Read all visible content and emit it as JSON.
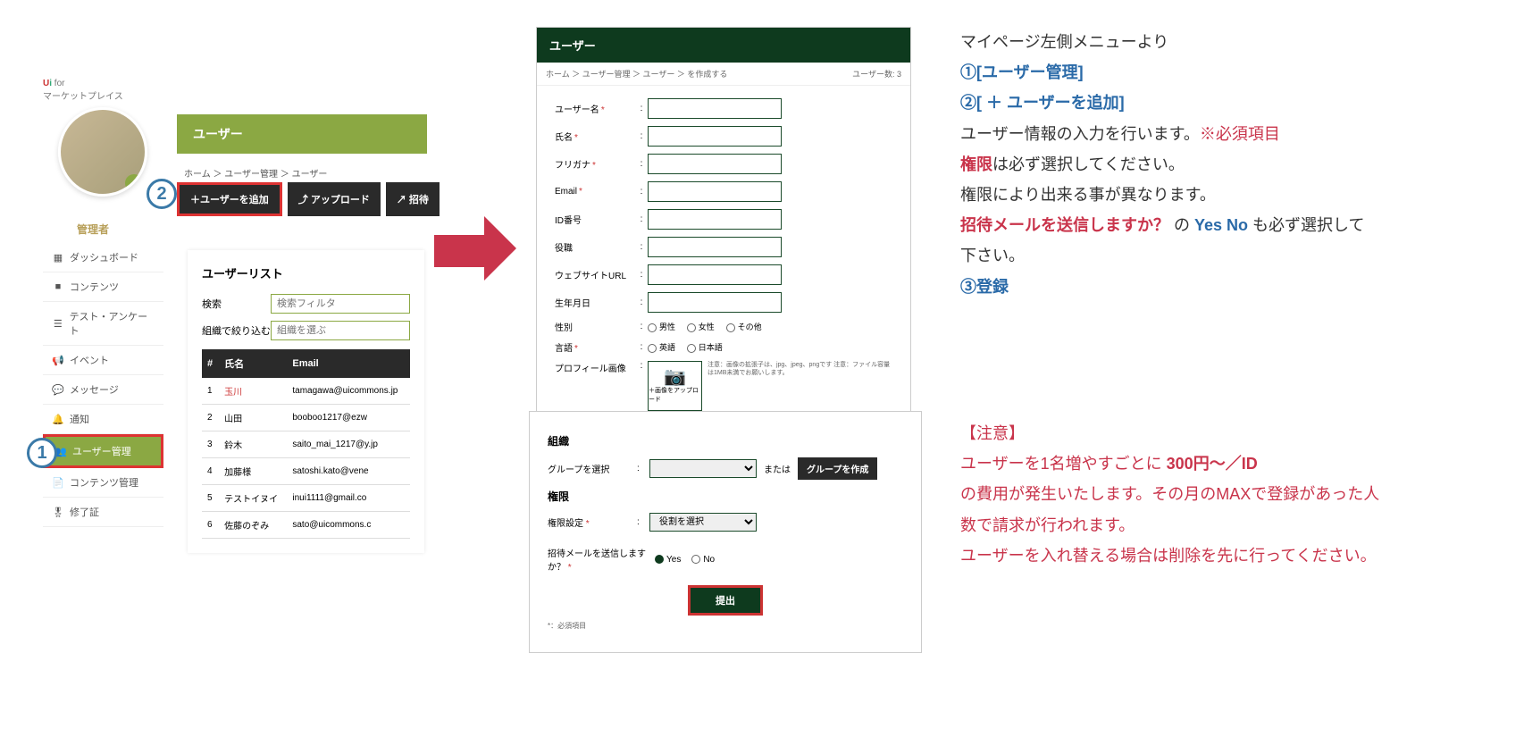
{
  "logo": {
    "brand": "Ui",
    "sub": "for",
    "tag": "マーケットプレイス"
  },
  "admin_label": "管理者",
  "sidebar": {
    "items": [
      {
        "icon": "▦",
        "label": "ダッシュボード"
      },
      {
        "icon": "■",
        "label": "コンテンツ"
      },
      {
        "icon": "☰",
        "label": "テスト・アンケート"
      },
      {
        "icon": "📢",
        "label": "イベント"
      },
      {
        "icon": "💬",
        "label": "メッセージ"
      },
      {
        "icon": "🔔",
        "label": "通知"
      },
      {
        "icon": "👥",
        "label": "ユーザー管理"
      },
      {
        "icon": "📄",
        "label": "コンテンツ管理"
      },
      {
        "icon": "🎖",
        "label": "修了証"
      }
    ]
  },
  "user_header": "ユーザー",
  "breadcrumb1": "ホーム ＞ ユーザー管理 ＞ ユーザー",
  "toolbar": {
    "add": "＋ユーザーを追加",
    "upload": "⤴ アップロード",
    "invite": "↗ 招待"
  },
  "list": {
    "title": "ユーザーリスト",
    "search_label": "検索",
    "search_ph": "検索フィルタ",
    "org_label": "組織で絞り込む",
    "org_ph": "組織を選ぶ",
    "cols": {
      "idx": "#",
      "name": "氏名",
      "email": "Email"
    },
    "rows": [
      {
        "i": "1",
        "name": "玉川",
        "email": "tamagawa@uicommons.jp",
        "red": true
      },
      {
        "i": "2",
        "name": "山田",
        "email": "booboo1217@ezw"
      },
      {
        "i": "3",
        "name": "鈴木",
        "email": "saito_mai_1217@y.jp"
      },
      {
        "i": "4",
        "name": "加藤様",
        "email": "satoshi.kato@vene"
      },
      {
        "i": "5",
        "name": "テストイヌイ",
        "email": "inui1111@gmail.co"
      },
      {
        "i": "6",
        "name": "佐藤のぞみ",
        "email": "sato@uicommons.c"
      }
    ]
  },
  "form": {
    "header": "ユーザー",
    "bc": "ホーム ＞ ユーザー管理 ＞ ユーザー ＞ を作成する",
    "count": "ユーザー数: 3",
    "fields": {
      "username": "ユーザー名",
      "name": "氏名",
      "kana": "フリガナ",
      "email": "Email",
      "idno": "ID番号",
      "role": "役職",
      "url": "ウェブサイトURL",
      "dob": "生年月日",
      "gender": "性別",
      "gender_opts": {
        "m": "男性",
        "f": "女性",
        "o": "その他"
      },
      "lang": "言語",
      "lang_opts": {
        "en": "英語",
        "ja": "日本語"
      },
      "profile": "プロフィール画像",
      "upload_btn": "＋画像をアップロード",
      "upload_note": "注意：画像の拡張子は、jpg、jpeg、pngです\n注意：ファイル容量は1MB未満でお願いします。"
    }
  },
  "form2": {
    "org_title": "組織",
    "group_label": "グループを選択",
    "or": "または",
    "create_group": "グループを作成",
    "perm_title": "権限",
    "perm_label": "権限設定",
    "perm_ph": "役割を選択",
    "invite_label": "招待メールを送信しますか？",
    "yes": "Yes",
    "no": "No",
    "submit": "提出",
    "req_note": "*：必須項目"
  },
  "badges": {
    "b1": "1",
    "b2": "2",
    "b3": "3"
  },
  "instr": {
    "l1": "マイページ左側メニューより",
    "l2": "①[ユーザー管理]",
    "l3": "②[ ＋ ユーザーを追加]",
    "l4a": "ユーザー情報の入力を行います。",
    "l4b": "※必須項目",
    "l5a": "権限",
    "l5b": "は必ず選択してください。",
    "l6": "権限により出来る事が異なります。",
    "l7a": "招待メールを送信しますか？",
    "l7b": " の ",
    "l7c": "Yes No",
    "l7d": " も必ず選択して下さい。",
    "l8": "③登録"
  },
  "caution": {
    "title": "【注意】",
    "l1a": "ユーザーを1名増やすごとに ",
    "l1b": "300円～／ID",
    "l2": "の費用が発生いたします。その月のMAXで登録があった人数で請求が行われます。",
    "l3": "ユーザーを入れ替える場合は削除を先に行ってください。"
  }
}
